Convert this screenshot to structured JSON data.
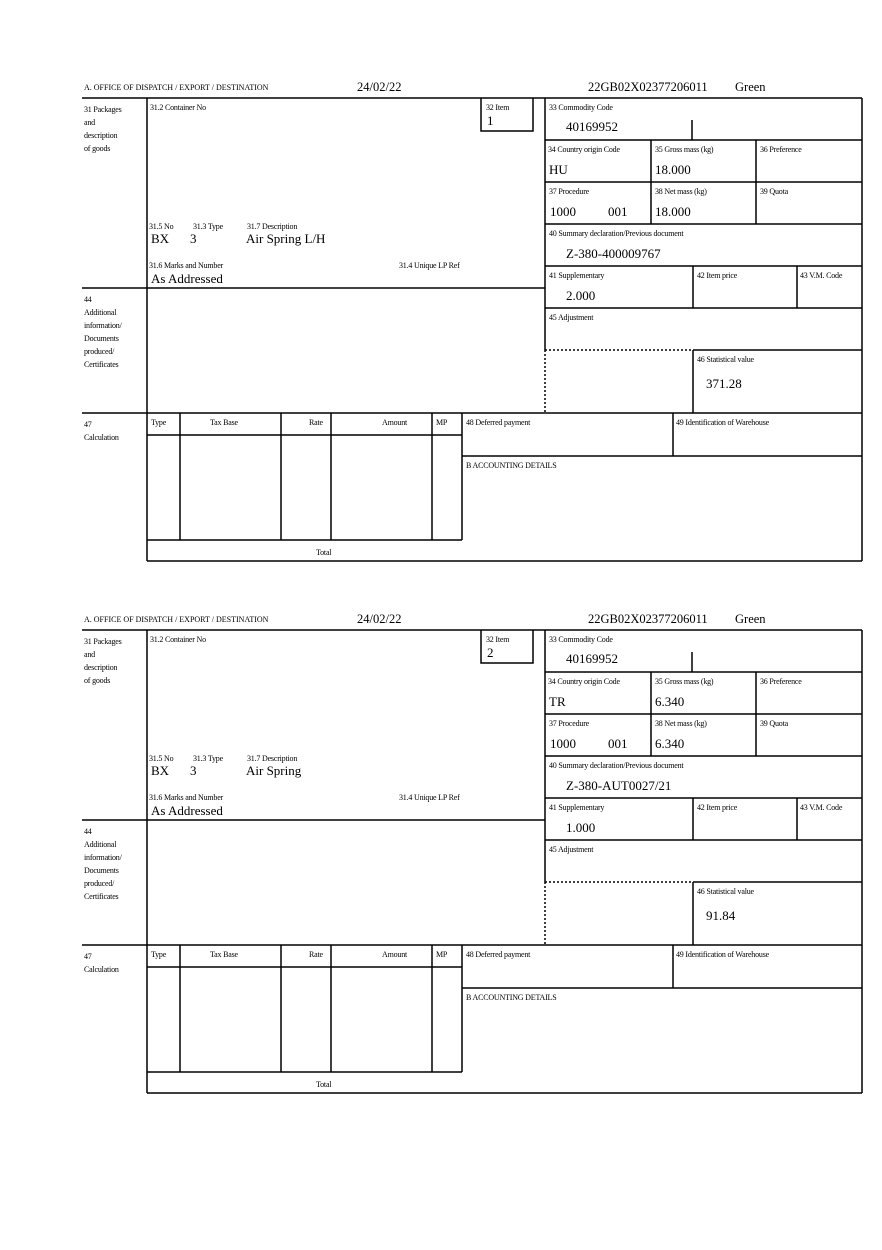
{
  "labels": {
    "office": "A.  OFFICE OF DISPATCH / EXPORT / DESTINATION",
    "packages": "31 Packages\nand\ndescription\nof goods",
    "container_no": "31.2 Container No",
    "item": "32 Item",
    "commodity_code": "33 Commodity Code",
    "country_origin": "34 Country origin Code",
    "gross_mass": "35 Gross mass (kg)",
    "preference": "36 Preference",
    "procedure": "37 Procedure",
    "net_mass": "38 Net mass (kg)",
    "quota": "39 Quota",
    "summary_declaration": "40 Summary declaration/Previous document",
    "supplementary": "41 Supplementary",
    "item_price": "42 Item price",
    "vm_code": "43 V.M. Code",
    "adjustment": "45 Adjustment",
    "statistical_value": "46 Statistical value",
    "pkg_no": "31.5 No",
    "pkg_type": "31.3 Type",
    "pkg_description": "31.7 Description",
    "marks_numbers": "31.6 Marks and Number",
    "unique_lp_ref": "31.4 Unique LP Ref",
    "additional_info": "44\nAdditional\ninformation/\nDocuments\nproduced/\nCertificates",
    "calculation": "47\nCalculation",
    "calc_type": "Type",
    "calc_tax_base": "Tax Base",
    "calc_rate": "Rate",
    "calc_amount": "Amount",
    "calc_mp": "MP",
    "deferred_payment": "48 Deferred payment",
    "warehouse_id": "49 Identification of Warehouse",
    "accounting_details": "B ACCOUNTING DETAILS",
    "total": "Total"
  },
  "forms": [
    {
      "date": "24/02/22",
      "reference": "22GB02X02377206011",
      "route": "Green",
      "item": "1",
      "commodity_code": "40169952",
      "country_origin": "HU",
      "gross_mass": "18.000",
      "procedure": "1000",
      "procedure_additional": "001",
      "net_mass": "18.000",
      "summary_declaration": "Z-380-400009767",
      "supplementary": "2.000",
      "statistical_value": "371.28",
      "pkg_no": "BX",
      "pkg_type": "3",
      "pkg_description": "Air Spring L/H",
      "marks_numbers": "As Addressed"
    },
    {
      "date": "24/02/22",
      "reference": "22GB02X02377206011",
      "route": "Green",
      "item": "2",
      "commodity_code": "40169952",
      "country_origin": "TR",
      "gross_mass": "6.340",
      "procedure": "1000",
      "procedure_additional": "001",
      "net_mass": "6.340",
      "summary_declaration": "Z-380-AUT0027/21",
      "supplementary": "1.000",
      "statistical_value": "91.84",
      "pkg_no": "BX",
      "pkg_type": "3",
      "pkg_description": "Air Spring",
      "marks_numbers": "As Addressed"
    }
  ]
}
